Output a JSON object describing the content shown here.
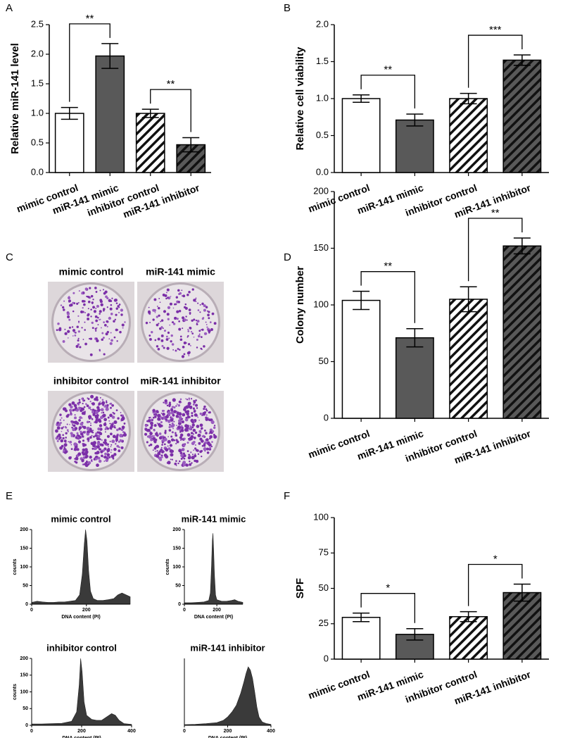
{
  "panels": [
    "A",
    "B",
    "C",
    "D",
    "E",
    "F"
  ],
  "chart_data": [
    {
      "type": "bar",
      "ylabel": "Relative miR-141 level",
      "categories": [
        "mimic control",
        "miR-141 mimic",
        "inhibitor control",
        "miR-141 inhibitor"
      ],
      "values": [
        1.0,
        1.97,
        1.0,
        0.47
      ],
      "errors": [
        0.1,
        0.21,
        0.07,
        0.12
      ],
      "colors": [
        "#ffffff",
        "#595959",
        "#ffffff",
        "#595959"
      ],
      "hatch": [
        false,
        false,
        true,
        true
      ],
      "ylim": [
        0,
        2.5
      ],
      "yticks": [
        {
          "value": 0,
          "label": "0.0"
        },
        0.5,
        {
          "value": 1,
          "label": "1.0"
        },
        1.5,
        {
          "value": 2,
          "label": "2.0"
        },
        2.5
      ],
      "annotations": [
        {
          "text": "**",
          "from": 0,
          "to": 1
        },
        {
          "text": "**",
          "from": 2,
          "to": 3
        }
      ]
    },
    {
      "type": "bar",
      "ylabel": "Relative cell viability",
      "categories": [
        "mimic control",
        "miR-141 mimic",
        "inhibitor control",
        "miR-141 inhibitor"
      ],
      "values": [
        1.0,
        0.71,
        1.0,
        1.52
      ],
      "errors": [
        0.05,
        0.08,
        0.07,
        0.07
      ],
      "colors": [
        "#ffffff",
        "#595959",
        "#ffffff",
        "#595959"
      ],
      "hatch": [
        false,
        false,
        true,
        true
      ],
      "ylim": [
        0,
        2.0
      ],
      "yticks": [
        {
          "value": 0,
          "label": "0.0"
        },
        0.5,
        {
          "value": 1,
          "label": "1.0"
        },
        1.5,
        {
          "value": 2,
          "label": "2.0"
        }
      ],
      "annotations": [
        {
          "text": "**",
          "from": 0,
          "to": 1
        },
        {
          "text": "***",
          "from": 2,
          "to": 3
        }
      ]
    },
    {
      "type": "image",
      "labels": [
        "mimic control",
        "miR-141 mimic",
        "inhibitor control",
        "miR-141 inhibitor"
      ]
    },
    {
      "type": "bar",
      "ylabel": "Colony number",
      "categories": [
        "mimic control",
        "miR-141 mimic",
        "inhibitor control",
        "miR-141 inhibitor"
      ],
      "values": [
        104,
        71,
        105,
        152
      ],
      "errors": [
        8,
        8,
        11,
        7
      ],
      "colors": [
        "#ffffff",
        "#595959",
        "#ffffff",
        "#595959"
      ],
      "hatch": [
        false,
        false,
        true,
        true
      ],
      "ylim": [
        0,
        200
      ],
      "yticks": [
        0,
        50,
        100,
        150,
        200
      ],
      "annotations": [
        {
          "text": "**",
          "from": 0,
          "to": 1
        },
        {
          "text": "**",
          "from": 2,
          "to": 3
        }
      ]
    },
    {
      "type": "bar",
      "ylabel": "SPF",
      "categories": [
        "mimic control",
        "miR-141 mimic",
        "inhibitor control",
        "miR-141 inhibitor"
      ],
      "values": [
        29.5,
        17.5,
        30,
        47
      ],
      "errors": [
        3,
        4,
        3.5,
        6
      ],
      "colors": [
        "#ffffff",
        "#595959",
        "#ffffff",
        "#595959"
      ],
      "hatch": [
        false,
        false,
        true,
        true
      ],
      "ylim": [
        0,
        100
      ],
      "yticks": [
        0,
        25,
        50,
        75,
        100
      ],
      "annotations": [
        {
          "text": "*",
          "from": 0,
          "to": 1
        },
        {
          "text": "*",
          "from": 2,
          "to": 3
        }
      ]
    },
    {
      "type": "area",
      "title": "mimic control",
      "xlabel": "DNA content (PI)",
      "ylabel": "counts",
      "x": [
        0,
        20,
        40,
        60,
        80,
        100,
        120,
        140,
        160,
        175,
        185,
        192,
        197,
        202,
        208,
        215,
        225,
        240,
        260,
        280,
        300,
        315,
        330,
        345,
        360
      ],
      "values": [
        5,
        8,
        6,
        5,
        5,
        6,
        6,
        8,
        10,
        25,
        80,
        160,
        200,
        170,
        90,
        35,
        15,
        10,
        10,
        12,
        15,
        25,
        30,
        25,
        20
      ],
      "xlim": [
        0,
        360
      ],
      "xticks": [
        0,
        200
      ],
      "ylim": [
        0,
        200
      ],
      "yticks": [
        0,
        50,
        100,
        150,
        200
      ]
    },
    {
      "type": "area",
      "title": "miR-141 mimic",
      "xlabel": "DNA content (PI)",
      "ylabel": "counts",
      "x": [
        0,
        40,
        80,
        120,
        150,
        160,
        167,
        172,
        176,
        180,
        185,
        192,
        200,
        230,
        260,
        290,
        310,
        330,
        360
      ],
      "values": [
        4,
        4,
        5,
        6,
        10,
        30,
        100,
        170,
        190,
        150,
        80,
        25,
        12,
        8,
        8,
        10,
        12,
        8,
        5
      ],
      "xlim": [
        0,
        360
      ],
      "xticks": [
        0,
        200
      ],
      "ylim": [
        0,
        200
      ],
      "yticks": [
        0,
        50,
        100,
        150,
        200
      ]
    },
    {
      "type": "area",
      "title": "inhibitor control",
      "xlabel": "DNA content (PI)",
      "ylabel": "counts",
      "x": [
        0,
        40,
        80,
        120,
        160,
        180,
        190,
        196,
        202,
        210,
        220,
        240,
        260,
        280,
        300,
        320,
        335,
        350,
        370,
        400
      ],
      "values": [
        4,
        4,
        5,
        6,
        12,
        40,
        120,
        200,
        160,
        70,
        30,
        18,
        15,
        15,
        25,
        35,
        30,
        15,
        5,
        3
      ],
      "xlim": [
        0,
        400
      ],
      "xticks": [
        0,
        200,
        400
      ],
      "ylim": [
        0,
        200
      ],
      "yticks": [
        0,
        50,
        100,
        150,
        200
      ]
    },
    {
      "type": "area",
      "title": "miR-141 inhibitor",
      "xlabel": "DNA content (PI)",
      "x": [
        0,
        50,
        100,
        150,
        180,
        200,
        220,
        240,
        260,
        275,
        285,
        295,
        305,
        315,
        325,
        335,
        345,
        360,
        380,
        400
      ],
      "values": [
        2,
        3,
        5,
        8,
        15,
        25,
        40,
        60,
        95,
        130,
        155,
        175,
        165,
        140,
        100,
        55,
        25,
        10,
        5,
        3
      ],
      "xlim": [
        0,
        400
      ],
      "xticks": [
        0,
        200,
        400
      ],
      "ylim": [
        0,
        200
      ]
    }
  ]
}
